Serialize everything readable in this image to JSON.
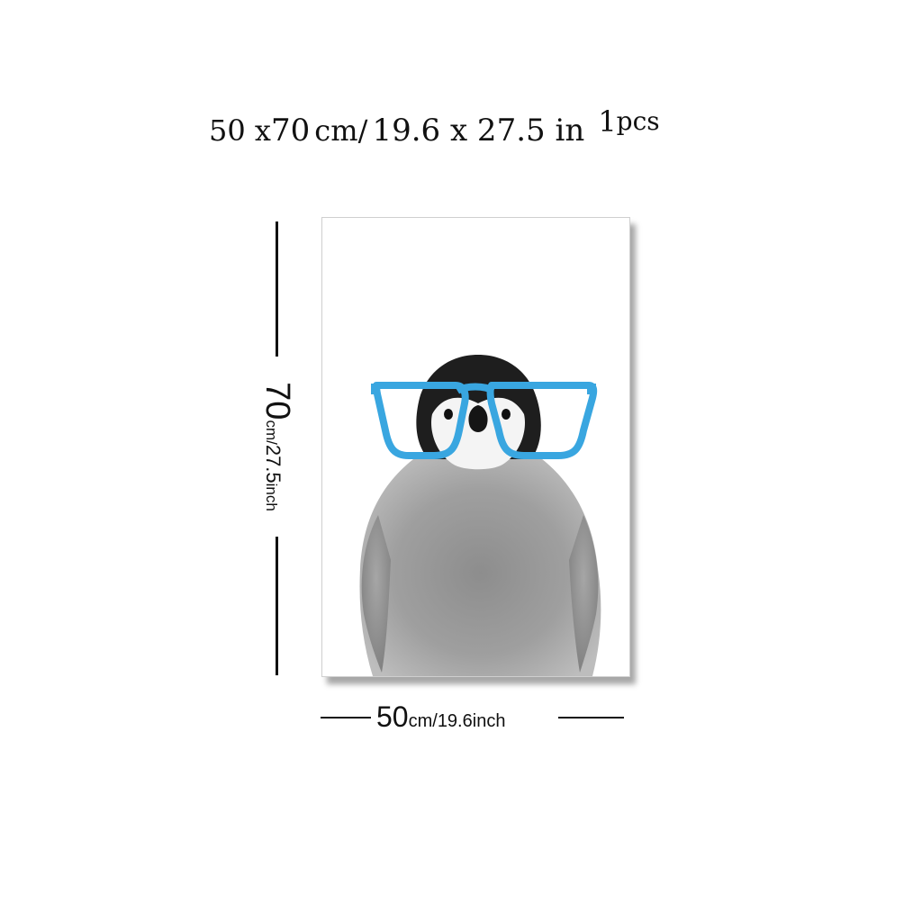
{
  "title": {
    "width_cm": "50 x",
    "height_cm": "70",
    "cm_sep": "cm/",
    "inches": "19.6 x 27.5 in",
    "qty_num": "1",
    "qty_unit": "pcs"
  },
  "product": {
    "artwork": "penguin-with-blue-glasses",
    "glasses_color": "#39a6e0",
    "background_color": "#ffffff"
  },
  "height_dimension": {
    "value": "70",
    "unit": "cm/",
    "inch_value": "27.5",
    "inch_unit": "inch"
  },
  "width_dimension": {
    "value": "50",
    "unit": "cm/",
    "inch_value": "19.6",
    "inch_unit": "inch"
  }
}
